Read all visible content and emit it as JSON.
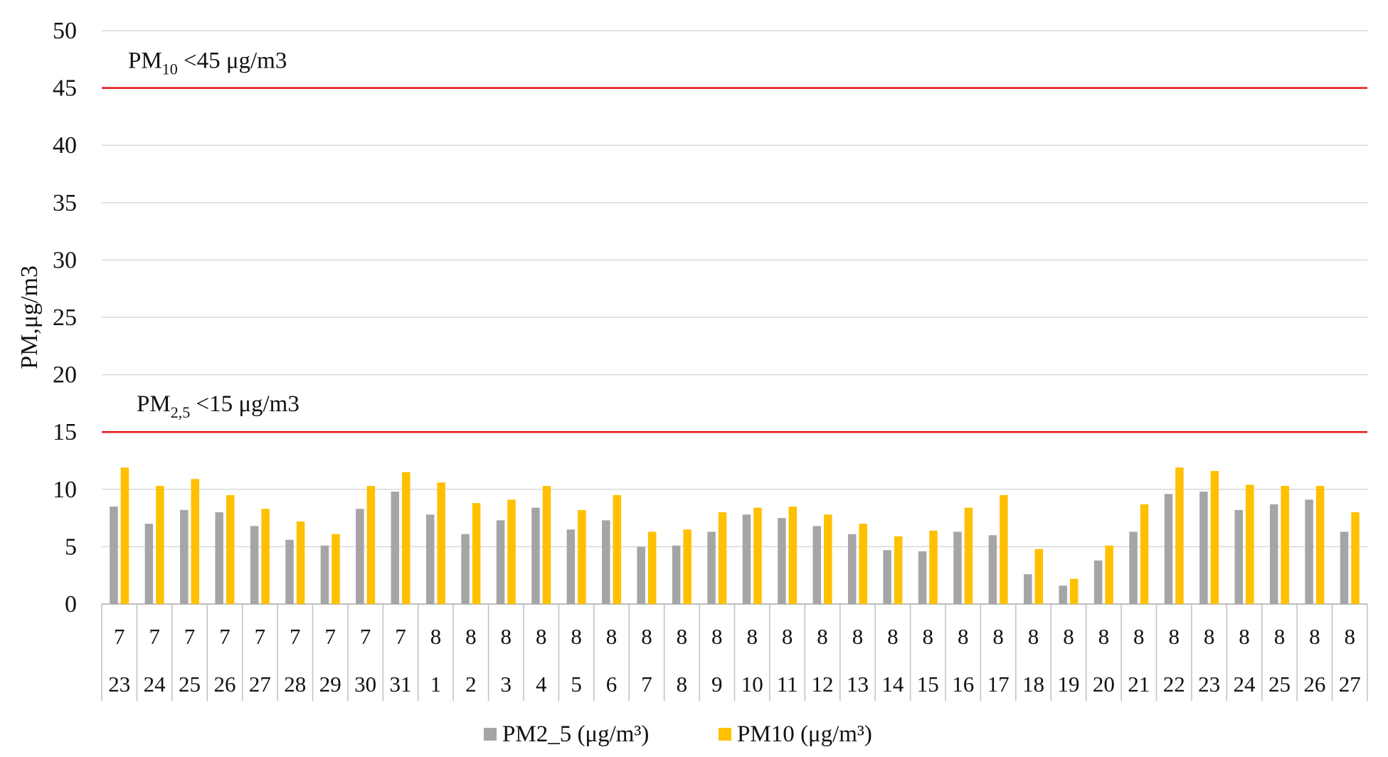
{
  "chart_data": {
    "type": "bar",
    "ylabel": "PM,μg/m3",
    "ylim": [
      0,
      50
    ],
    "yticks": [
      "0",
      "5",
      "10",
      "15",
      "20",
      "25",
      "30",
      "35",
      "40",
      "45",
      "50"
    ],
    "grid": true,
    "legend_position": "bottom",
    "categories": [
      {
        "month": "7",
        "day": "23"
      },
      {
        "month": "7",
        "day": "24"
      },
      {
        "month": "7",
        "day": "25"
      },
      {
        "month": "7",
        "day": "26"
      },
      {
        "month": "7",
        "day": "27"
      },
      {
        "month": "7",
        "day": "28"
      },
      {
        "month": "7",
        "day": "29"
      },
      {
        "month": "7",
        "day": "30"
      },
      {
        "month": "7",
        "day": "31"
      },
      {
        "month": "8",
        "day": "1"
      },
      {
        "month": "8",
        "day": "2"
      },
      {
        "month": "8",
        "day": "3"
      },
      {
        "month": "8",
        "day": "4"
      },
      {
        "month": "8",
        "day": "5"
      },
      {
        "month": "8",
        "day": "6"
      },
      {
        "month": "8",
        "day": "7"
      },
      {
        "month": "8",
        "day": "8"
      },
      {
        "month": "8",
        "day": "9"
      },
      {
        "month": "8",
        "day": "10"
      },
      {
        "month": "8",
        "day": "11"
      },
      {
        "month": "8",
        "day": "12"
      },
      {
        "month": "8",
        "day": "13"
      },
      {
        "month": "8",
        "day": "14"
      },
      {
        "month": "8",
        "day": "15"
      },
      {
        "month": "8",
        "day": "16"
      },
      {
        "month": "8",
        "day": "17"
      },
      {
        "month": "8",
        "day": "18"
      },
      {
        "month": "8",
        "day": "19"
      },
      {
        "month": "8",
        "day": "20"
      },
      {
        "month": "8",
        "day": "21"
      },
      {
        "month": "8",
        "day": "22"
      },
      {
        "month": "8",
        "day": "23"
      },
      {
        "month": "8",
        "day": "24"
      },
      {
        "month": "8",
        "day": "25"
      },
      {
        "month": "8",
        "day": "26"
      },
      {
        "month": "8",
        "day": "27"
      }
    ],
    "series": [
      {
        "name": "PM2_5 (μg/m³)",
        "color": "#a5a5a5",
        "values": [
          8.5,
          7.0,
          8.2,
          8.0,
          6.8,
          5.6,
          5.1,
          8.3,
          9.8,
          7.8,
          6.1,
          7.3,
          8.4,
          6.5,
          7.3,
          5.0,
          5.1,
          6.3,
          7.8,
          7.5,
          6.8,
          6.1,
          4.7,
          4.6,
          6.3,
          6.0,
          2.6,
          1.6,
          3.8,
          6.3,
          9.6,
          9.8,
          8.2,
          8.7,
          9.1,
          6.3
        ]
      },
      {
        "name": "PM10 (μg/m³)",
        "color": "#ffc000",
        "values": [
          11.9,
          10.3,
          10.9,
          9.5,
          8.3,
          7.2,
          6.1,
          10.3,
          11.5,
          10.6,
          8.8,
          9.1,
          10.3,
          8.2,
          9.5,
          6.3,
          6.5,
          8.0,
          8.4,
          8.5,
          7.8,
          7.0,
          5.9,
          6.4,
          8.4,
          9.5,
          4.8,
          2.2,
          5.1,
          8.7,
          11.9,
          11.6,
          10.4,
          10.3,
          10.3,
          8.0
        ]
      }
    ],
    "reference_lines": [
      {
        "value": 45,
        "color": "#e8161b",
        "label_main": "PM",
        "label_sub": "10",
        "label_rest": " <45 μg/m3"
      },
      {
        "value": 15,
        "color": "#e8161b",
        "label_main": "PM",
        "label_sub": "2,5",
        "label_rest": " <15 μg/m3"
      }
    ],
    "colors": {
      "grid": "#d9d9d9",
      "axis": "#bfbfbf"
    }
  }
}
